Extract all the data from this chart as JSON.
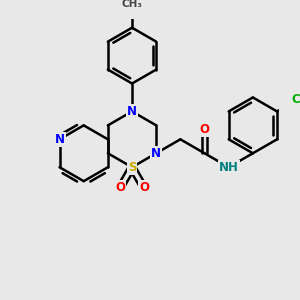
{
  "background_color": "#e8e8e8",
  "bond_color": "#000000",
  "bond_width": 1.8,
  "atom_colors": {
    "N": "#0000ff",
    "S": "#ccaa00",
    "O": "#ff0000",
    "Cl": "#00aa00",
    "C": "#000000",
    "H": "#008080"
  },
  "font_size": 8.5
}
